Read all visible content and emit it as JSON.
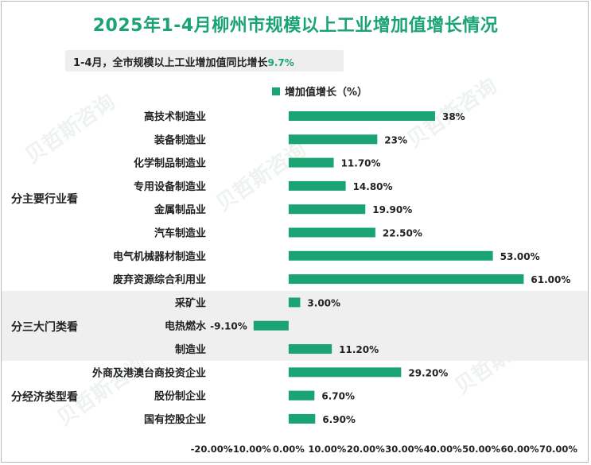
{
  "title": "2025年1-4月柳州市规模以上工业增加值增长情况",
  "subtitle": {
    "text": "1-4月，全市规模以上工业增加值同比增长",
    "value": "9.7%"
  },
  "legend_label": "增加值增长（%）",
  "groups": [
    {
      "label": "分主要行业看",
      "start": 0,
      "end": 7,
      "shaded": false
    },
    {
      "label": "分三大门类看",
      "start": 8,
      "end": 10,
      "shaded": true
    },
    {
      "label": "分经济类型看",
      "start": 11,
      "end": 13,
      "shaded": false
    }
  ],
  "colors": {
    "bar": "#1aa473",
    "title": "#1aa473",
    "band": "#efefef"
  },
  "chart_data": {
    "type": "bar",
    "orientation": "horizontal",
    "categories": [
      "高技术制造业",
      "装备制造业",
      "化学制品制造业",
      "专用设备制造业",
      "金属制品业",
      "汽车制造业",
      "电气机械器材制造业",
      "废弃资源综合利用业",
      "采矿业",
      "电热燃水",
      "制造业",
      "外商及港澳台商投资企业",
      "股份制企业",
      "国有控股企业"
    ],
    "series": [
      {
        "name": "增加值增长（%）",
        "values": [
          38,
          23,
          11.7,
          14.8,
          19.9,
          22.5,
          53,
          61,
          3,
          -9.1,
          11.2,
          29.2,
          6.7,
          6.9
        ]
      }
    ],
    "value_labels": [
      "38%",
      "23%",
      "11.70%",
      "14.80%",
      "19.90%",
      "22.50%",
      "53.00%",
      "61.00%",
      "3.00%",
      "-9.10%",
      "11.20%",
      "29.20%",
      "6.70%",
      "6.90%"
    ],
    "xlim": [
      -20,
      70
    ],
    "xticks": [
      -20,
      -10,
      0,
      10,
      20,
      30,
      40,
      50,
      60,
      70
    ],
    "xtick_labels": [
      "-20.00%",
      "-10.00%",
      "0.00%",
      "10.00%",
      "20.00%",
      "30.00%",
      "40.00%",
      "50.00%",
      "60.00%",
      "70.00%"
    ],
    "title": "2025年1-4月柳州市规模以上工业增加值增长情况",
    "legend": "top"
  }
}
